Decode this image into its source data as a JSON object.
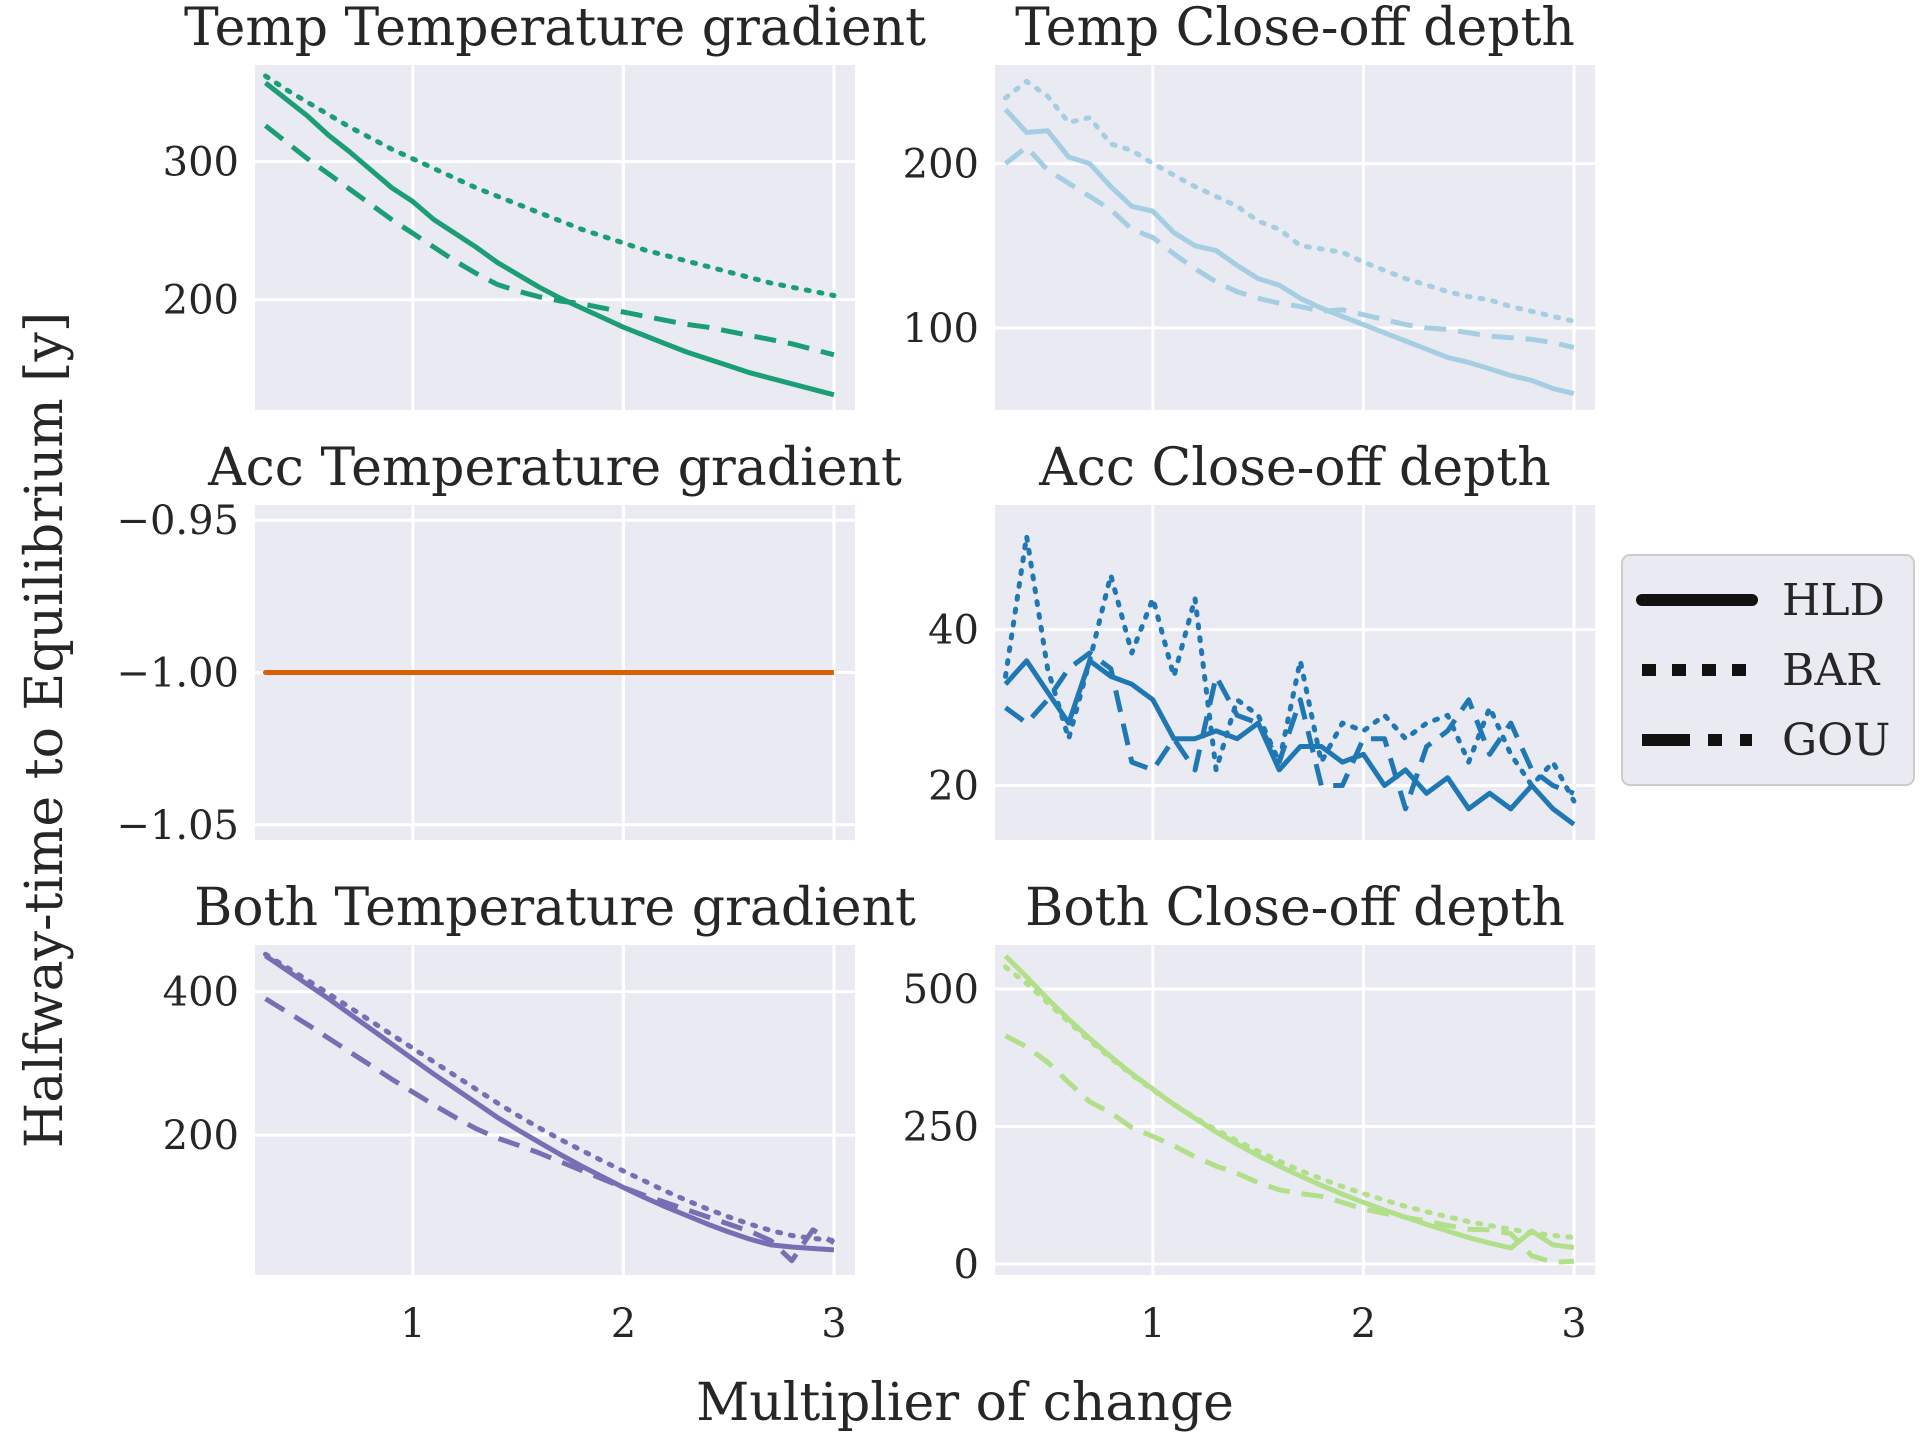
{
  "figure": {
    "xlabel": "Multiplier of change",
    "ylabel": "Halfway-time to Equilibrium [y]"
  },
  "legend": {
    "placement": "right",
    "entries": [
      {
        "label": "HLD",
        "style": "solid"
      },
      {
        "label": "BAR",
        "style": "dotted"
      },
      {
        "label": "GOU",
        "style": "dashed"
      }
    ]
  },
  "chart_data": [
    {
      "type": "line",
      "title": "Temp Temperature gradient",
      "color": "#1b9e77",
      "xlim": [
        0.25,
        3.1
      ],
      "ylim": [
        120,
        370
      ],
      "xticks": [
        1,
        2,
        3
      ],
      "yticks": [
        200,
        300
      ],
      "x": [
        0.3,
        0.4,
        0.5,
        0.6,
        0.7,
        0.8,
        0.9,
        1.0,
        1.1,
        1.2,
        1.3,
        1.4,
        1.5,
        1.6,
        1.7,
        1.8,
        1.9,
        2.0,
        2.1,
        2.2,
        2.3,
        2.4,
        2.5,
        2.6,
        2.7,
        2.8,
        2.9,
        3.0
      ],
      "series": [
        {
          "name": "HLD",
          "style": "solid",
          "values": [
            357,
            345,
            333,
            319,
            307,
            294,
            281,
            271,
            258,
            248,
            238,
            227,
            218,
            209,
            201,
            194,
            187,
            180,
            174,
            168,
            162,
            157,
            152,
            147,
            143,
            139,
            135,
            131
          ]
        },
        {
          "name": "BAR",
          "style": "dotted",
          "values": [
            362,
            352,
            343,
            334,
            325,
            317,
            309,
            302,
            295,
            288,
            281,
            275,
            269,
            263,
            257,
            251,
            246,
            241,
            236,
            232,
            228,
            224,
            220,
            216,
            212,
            209,
            206,
            203
          ]
        },
        {
          "name": "GOU",
          "style": "dashed",
          "values": [
            326,
            314,
            302,
            291,
            280,
            269,
            258,
            248,
            238,
            228,
            219,
            211,
            206,
            202,
            199,
            197,
            194,
            191,
            188,
            185,
            182,
            180,
            177,
            174,
            171,
            168,
            164,
            160
          ]
        }
      ]
    },
    {
      "type": "line",
      "title": "Temp Close-off depth",
      "color": "#a6cee3",
      "xlim": [
        0.25,
        3.1
      ],
      "ylim": [
        50,
        260
      ],
      "xticks": [
        1,
        2,
        3
      ],
      "yticks": [
        100,
        200
      ],
      "x": [
        0.3,
        0.4,
        0.5,
        0.6,
        0.7,
        0.8,
        0.9,
        1.0,
        1.1,
        1.2,
        1.3,
        1.4,
        1.5,
        1.6,
        1.7,
        1.8,
        1.9,
        2.0,
        2.1,
        2.2,
        2.3,
        2.4,
        2.5,
        2.6,
        2.7,
        2.8,
        2.9,
        3.0
      ],
      "series": [
        {
          "name": "HLD",
          "style": "solid",
          "values": [
            233,
            219,
            220,
            204,
            200,
            186,
            174,
            171,
            158,
            150,
            147,
            138,
            130,
            126,
            118,
            112,
            107,
            102,
            97,
            92,
            87,
            82,
            79,
            75,
            71,
            68,
            63,
            60
          ]
        },
        {
          "name": "BAR",
          "style": "dotted",
          "values": [
            240,
            250,
            241,
            225,
            228,
            212,
            208,
            200,
            193,
            186,
            180,
            174,
            165,
            160,
            150,
            148,
            146,
            140,
            135,
            130,
            126,
            122,
            119,
            117,
            113,
            110,
            107,
            104
          ]
        },
        {
          "name": "GOU",
          "style": "dashed",
          "values": [
            200,
            210,
            196,
            188,
            180,
            172,
            160,
            155,
            145,
            136,
            128,
            122,
            118,
            115,
            113,
            110,
            111,
            108,
            105,
            102,
            100,
            99,
            97,
            95,
            94,
            93,
            91,
            88
          ]
        }
      ]
    },
    {
      "type": "line",
      "title": "Acc Temperature gradient",
      "color": "#d95f02",
      "xlim": [
        0.25,
        3.1
      ],
      "ylim": [
        -1.055,
        -0.945
      ],
      "xticks": [
        1,
        2,
        3
      ],
      "yticks": [
        -1.05,
        -1.0,
        -0.95
      ],
      "ytick_labels": [
        "−1.05",
        "−1.00",
        "−0.95"
      ],
      "x": [
        0.3,
        0.4,
        0.5,
        0.6,
        0.7,
        0.8,
        0.9,
        1.0,
        1.1,
        1.2,
        1.3,
        1.4,
        1.5,
        1.6,
        1.7,
        1.8,
        1.9,
        2.0,
        2.1,
        2.2,
        2.3,
        2.4,
        2.5,
        2.6,
        2.7,
        2.8,
        2.9,
        3.0
      ],
      "series": [
        {
          "name": "HLD",
          "style": "solid",
          "values": [
            -1,
            -1,
            -1,
            -1,
            -1,
            -1,
            -1,
            -1,
            -1,
            -1,
            -1,
            -1,
            -1,
            -1,
            -1,
            -1,
            -1,
            -1,
            -1,
            -1,
            -1,
            -1,
            -1,
            -1,
            -1,
            -1,
            -1,
            -1
          ]
        },
        {
          "name": "BAR",
          "style": "dotted",
          "values": [
            -1,
            -1,
            -1,
            -1,
            -1,
            -1,
            -1,
            -1,
            -1,
            -1,
            -1,
            -1,
            -1,
            -1,
            -1,
            -1,
            -1,
            -1,
            -1,
            -1,
            -1,
            -1,
            -1,
            -1,
            -1,
            -1,
            -1,
            -1
          ]
        },
        {
          "name": "GOU",
          "style": "dashed",
          "values": [
            -1,
            -1,
            -1,
            -1,
            -1,
            -1,
            -1,
            -1,
            -1,
            -1,
            -1,
            -1,
            -1,
            -1,
            -1,
            -1,
            -1,
            -1,
            -1,
            -1,
            -1,
            -1,
            -1,
            -1,
            -1,
            -1,
            -1,
            -1
          ]
        }
      ]
    },
    {
      "type": "line",
      "title": "Acc Close-off depth",
      "color": "#1f78b4",
      "xlim": [
        0.25,
        3.1
      ],
      "ylim": [
        13,
        56
      ],
      "xticks": [
        1,
        2,
        3
      ],
      "yticks": [
        20,
        40
      ],
      "x": [
        0.3,
        0.4,
        0.5,
        0.6,
        0.7,
        0.8,
        0.9,
        1.0,
        1.1,
        1.2,
        1.3,
        1.4,
        1.5,
        1.6,
        1.7,
        1.8,
        1.9,
        2.0,
        2.1,
        2.2,
        2.3,
        2.4,
        2.5,
        2.6,
        2.7,
        2.8,
        2.9,
        3.0
      ],
      "series": [
        {
          "name": "HLD",
          "style": "solid",
          "values": [
            33,
            36,
            32,
            28,
            36,
            34,
            33,
            31,
            26,
            26,
            27,
            26,
            28,
            22,
            25,
            25,
            23,
            24,
            20,
            22,
            19,
            21,
            17,
            19,
            17,
            20,
            17,
            15
          ]
        },
        {
          "name": "BAR",
          "style": "dotted",
          "values": [
            34,
            52,
            35,
            26,
            36,
            47,
            37,
            44,
            34,
            44,
            22,
            31,
            29,
            23,
            36,
            23,
            28,
            27,
            29,
            26,
            28,
            29,
            23,
            30,
            24,
            20,
            23,
            18
          ]
        },
        {
          "name": "GOU",
          "style": "dashed",
          "values": [
            30,
            28,
            31,
            35,
            37,
            35,
            23,
            22,
            26,
            22,
            34,
            29,
            28,
            23,
            31,
            20,
            20,
            26,
            26,
            17,
            25,
            27,
            31,
            24,
            28,
            22,
            20,
            19
          ]
        }
      ]
    },
    {
      "type": "line",
      "title": "Both Temperature gradient",
      "color": "#7570b3",
      "xlim": [
        0.25,
        3.1
      ],
      "ylim": [
        5,
        465
      ],
      "xticks": [
        1,
        2,
        3
      ],
      "yticks": [
        200,
        400
      ],
      "x": [
        0.3,
        0.4,
        0.5,
        0.6,
        0.7,
        0.8,
        0.9,
        1.0,
        1.1,
        1.2,
        1.3,
        1.4,
        1.5,
        1.6,
        1.7,
        1.8,
        1.9,
        2.0,
        2.1,
        2.2,
        2.3,
        2.4,
        2.5,
        2.6,
        2.7,
        2.8,
        2.9,
        3.0
      ],
      "series": [
        {
          "name": "HLD",
          "style": "solid",
          "values": [
            450,
            430,
            410,
            390,
            369,
            348,
            327,
            306,
            285,
            265,
            245,
            225,
            207,
            190,
            173,
            157,
            142,
            127,
            113,
            100,
            88,
            76,
            65,
            55,
            47,
            44,
            42,
            40
          ]
        },
        {
          "name": "BAR",
          "style": "dotted",
          "values": [
            452,
            434,
            416,
            397,
            378,
            359,
            340,
            321,
            302,
            283,
            264,
            245,
            227,
            210,
            194,
            179,
            164,
            150,
            136,
            122,
            109,
            97,
            86,
            76,
            67,
            60,
            56,
            53
          ]
        },
        {
          "name": "GOU",
          "style": "dashed",
          "values": [
            390,
            372,
            354,
            335,
            316,
            297,
            278,
            260,
            242,
            225,
            209,
            196,
            186,
            175,
            163,
            151,
            139,
            127,
            116,
            106,
            96,
            86,
            76,
            66,
            53,
            25,
            68,
            50
          ]
        }
      ]
    },
    {
      "type": "line",
      "title": "Both Close-off depth",
      "color": "#b2df8a",
      "xlim": [
        0.25,
        3.1
      ],
      "ylim": [
        -20,
        580
      ],
      "xticks": [
        1,
        2,
        3
      ],
      "yticks": [
        0,
        250,
        500
      ],
      "x": [
        0.3,
        0.4,
        0.5,
        0.6,
        0.7,
        0.8,
        0.9,
        1.0,
        1.1,
        1.2,
        1.3,
        1.4,
        1.5,
        1.6,
        1.7,
        1.8,
        1.9,
        2.0,
        2.1,
        2.2,
        2.3,
        2.4,
        2.5,
        2.6,
        2.7,
        2.8,
        2.9,
        3.0
      ],
      "series": [
        {
          "name": "HLD",
          "style": "solid",
          "values": [
            560,
            522,
            482,
            445,
            410,
            377,
            346,
            318,
            290,
            265,
            240,
            218,
            197,
            178,
            160,
            143,
            127,
            112,
            98,
            85,
            72,
            60,
            48,
            38,
            29,
            60,
            35,
            30
          ]
        },
        {
          "name": "BAR",
          "style": "dotted",
          "values": [
            540,
            510,
            475,
            440,
            406,
            374,
            344,
            316,
            290,
            266,
            244,
            224,
            205,
            187,
            170,
            155,
            141,
            128,
            116,
            105,
            95,
            86,
            77,
            70,
            63,
            57,
            52,
            48
          ]
        },
        {
          "name": "GOU",
          "style": "dashed",
          "values": [
            415,
            395,
            367,
            330,
            295,
            275,
            248,
            232,
            215,
            195,
            178,
            165,
            148,
            135,
            128,
            123,
            112,
            100,
            92,
            85,
            78,
            70,
            63,
            62,
            55,
            15,
            3,
            5
          ]
        }
      ]
    }
  ]
}
